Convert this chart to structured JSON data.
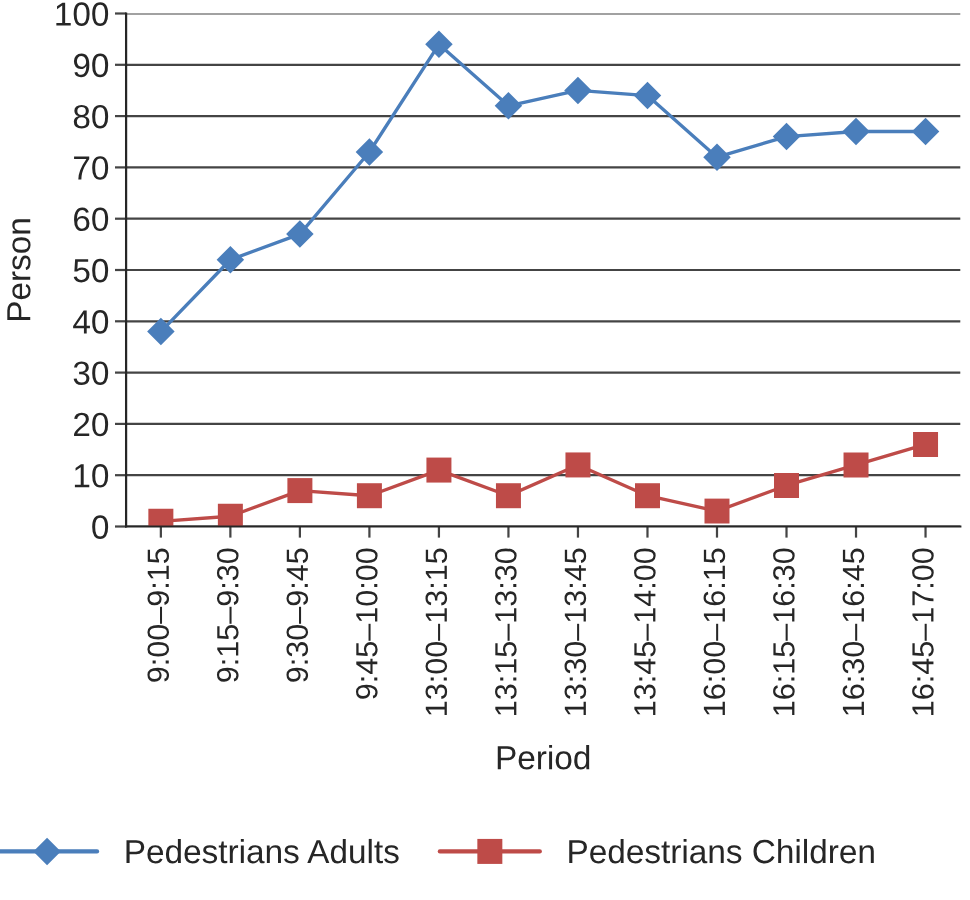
{
  "chart_data": {
    "type": "line",
    "xlabel": "Period",
    "ylabel": "Person",
    "categories": [
      "9:00–9:15",
      "9:15–9:30",
      "9:30–9:45",
      "9:45–10:00",
      "13:00–13:15",
      "13:15–13:30",
      "13:30–13:45",
      "13:45–14:00",
      "16:00–16:15",
      "16:15–16:30",
      "16:30–16:45",
      "16:45–17:00"
    ],
    "series": [
      {
        "name": "Pedestrians Adults",
        "color": "#4a7ebb",
        "marker": "diamond",
        "values": [
          38,
          52,
          57,
          73,
          94,
          82,
          85,
          84,
          72,
          76,
          77,
          77
        ]
      },
      {
        "name": "Pedestrians Children",
        "color": "#be4b48",
        "marker": "square",
        "values": [
          1,
          2,
          7,
          6,
          11,
          6,
          12,
          6,
          3,
          8,
          12,
          16
        ]
      }
    ],
    "ylim": [
      0,
      100
    ],
    "yticks": [
      0,
      10,
      20,
      30,
      40,
      50,
      60,
      70,
      80,
      90,
      100
    ],
    "grid": "y",
    "legend": "bottom"
  }
}
